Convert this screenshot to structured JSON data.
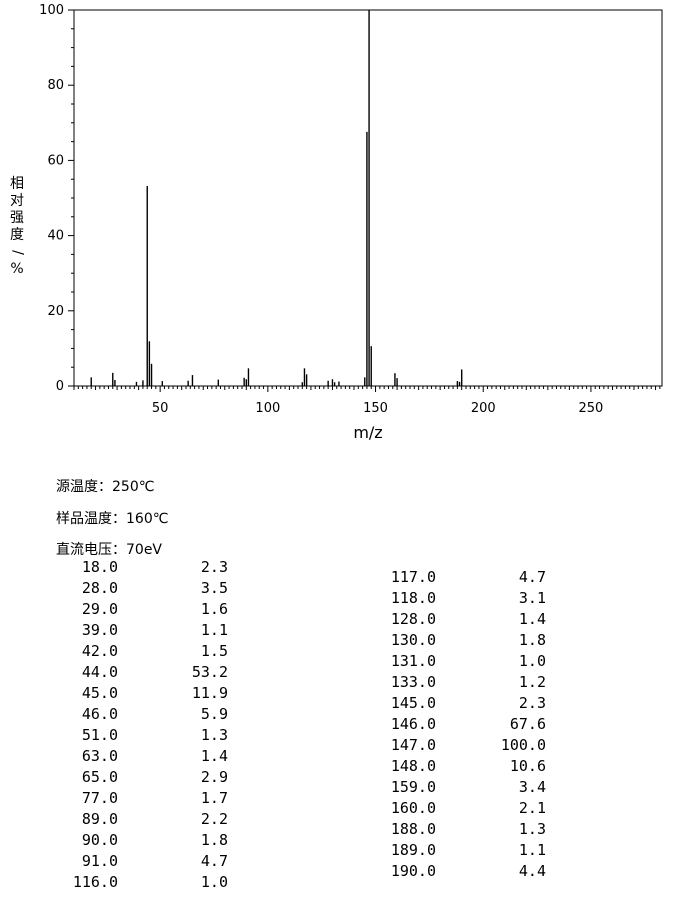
{
  "chart_data": {
    "type": "bar",
    "xlabel": "m/z",
    "ylabel": "相对强度/%",
    "xlim": [
      10,
      283
    ],
    "ylim": [
      0,
      100
    ],
    "x_ticks": [
      "50",
      "100",
      "150",
      "200",
      "250"
    ],
    "y_ticks": [
      "0",
      "20",
      "40",
      "60",
      "80",
      "100"
    ],
    "grid": false,
    "peaks": [
      {
        "mz": 18.0,
        "abundance": 2.3
      },
      {
        "mz": 28.0,
        "abundance": 3.5
      },
      {
        "mz": 29.0,
        "abundance": 1.6
      },
      {
        "mz": 39.0,
        "abundance": 1.1
      },
      {
        "mz": 42.0,
        "abundance": 1.5
      },
      {
        "mz": 44.0,
        "abundance": 53.2
      },
      {
        "mz": 45.0,
        "abundance": 11.9
      },
      {
        "mz": 46.0,
        "abundance": 5.9
      },
      {
        "mz": 51.0,
        "abundance": 1.3
      },
      {
        "mz": 63.0,
        "abundance": 1.4
      },
      {
        "mz": 65.0,
        "abundance": 2.9
      },
      {
        "mz": 77.0,
        "abundance": 1.7
      },
      {
        "mz": 89.0,
        "abundance": 2.2
      },
      {
        "mz": 90.0,
        "abundance": 1.8
      },
      {
        "mz": 91.0,
        "abundance": 4.7
      },
      {
        "mz": 116.0,
        "abundance": 1.0
      },
      {
        "mz": 117.0,
        "abundance": 4.7
      },
      {
        "mz": 118.0,
        "abundance": 3.1
      },
      {
        "mz": 128.0,
        "abundance": 1.4
      },
      {
        "mz": 130.0,
        "abundance": 1.8
      },
      {
        "mz": 131.0,
        "abundance": 1.0
      },
      {
        "mz": 133.0,
        "abundance": 1.2
      },
      {
        "mz": 145.0,
        "abundance": 2.3
      },
      {
        "mz": 146.0,
        "abundance": 67.6
      },
      {
        "mz": 147.0,
        "abundance": 100.0
      },
      {
        "mz": 148.0,
        "abundance": 10.6
      },
      {
        "mz": 159.0,
        "abundance": 3.4
      },
      {
        "mz": 160.0,
        "abundance": 2.1
      },
      {
        "mz": 188.0,
        "abundance": 1.3
      },
      {
        "mz": 189.0,
        "abundance": 1.1
      },
      {
        "mz": 190.0,
        "abundance": 4.4
      }
    ]
  },
  "conditions": {
    "source_temp": "源温度：250℃",
    "sample_temp": "样品温度：160℃",
    "voltage": "直流电压：70eV"
  },
  "table_left": [
    {
      "mz": "18.0",
      "ab": "2.3"
    },
    {
      "mz": "28.0",
      "ab": "3.5"
    },
    {
      "mz": "29.0",
      "ab": "1.6"
    },
    {
      "mz": "39.0",
      "ab": "1.1"
    },
    {
      "mz": "42.0",
      "ab": "1.5"
    },
    {
      "mz": "44.0",
      "ab": "53.2"
    },
    {
      "mz": "45.0",
      "ab": "11.9"
    },
    {
      "mz": "46.0",
      "ab": "5.9"
    },
    {
      "mz": "51.0",
      "ab": "1.3"
    },
    {
      "mz": "63.0",
      "ab": "1.4"
    },
    {
      "mz": "65.0",
      "ab": "2.9"
    },
    {
      "mz": "77.0",
      "ab": "1.7"
    },
    {
      "mz": "89.0",
      "ab": "2.2"
    },
    {
      "mz": "90.0",
      "ab": "1.8"
    },
    {
      "mz": "91.0",
      "ab": "4.7"
    },
    {
      "mz": "116.0",
      "ab": "1.0"
    }
  ],
  "table_right": [
    {
      "mz": "117.0",
      "ab": "4.7"
    },
    {
      "mz": "118.0",
      "ab": "3.1"
    },
    {
      "mz": "128.0",
      "ab": "1.4"
    },
    {
      "mz": "130.0",
      "ab": "1.8"
    },
    {
      "mz": "131.0",
      "ab": "1.0"
    },
    {
      "mz": "133.0",
      "ab": "1.2"
    },
    {
      "mz": "145.0",
      "ab": "2.3"
    },
    {
      "mz": "146.0",
      "ab": "67.6"
    },
    {
      "mz": "147.0",
      "ab": "100.0"
    },
    {
      "mz": "148.0",
      "ab": "10.6"
    },
    {
      "mz": "159.0",
      "ab": "3.4"
    },
    {
      "mz": "160.0",
      "ab": "2.1"
    },
    {
      "mz": "188.0",
      "ab": "1.3"
    },
    {
      "mz": "189.0",
      "ab": "1.1"
    },
    {
      "mz": "190.0",
      "ab": "4.4"
    }
  ]
}
